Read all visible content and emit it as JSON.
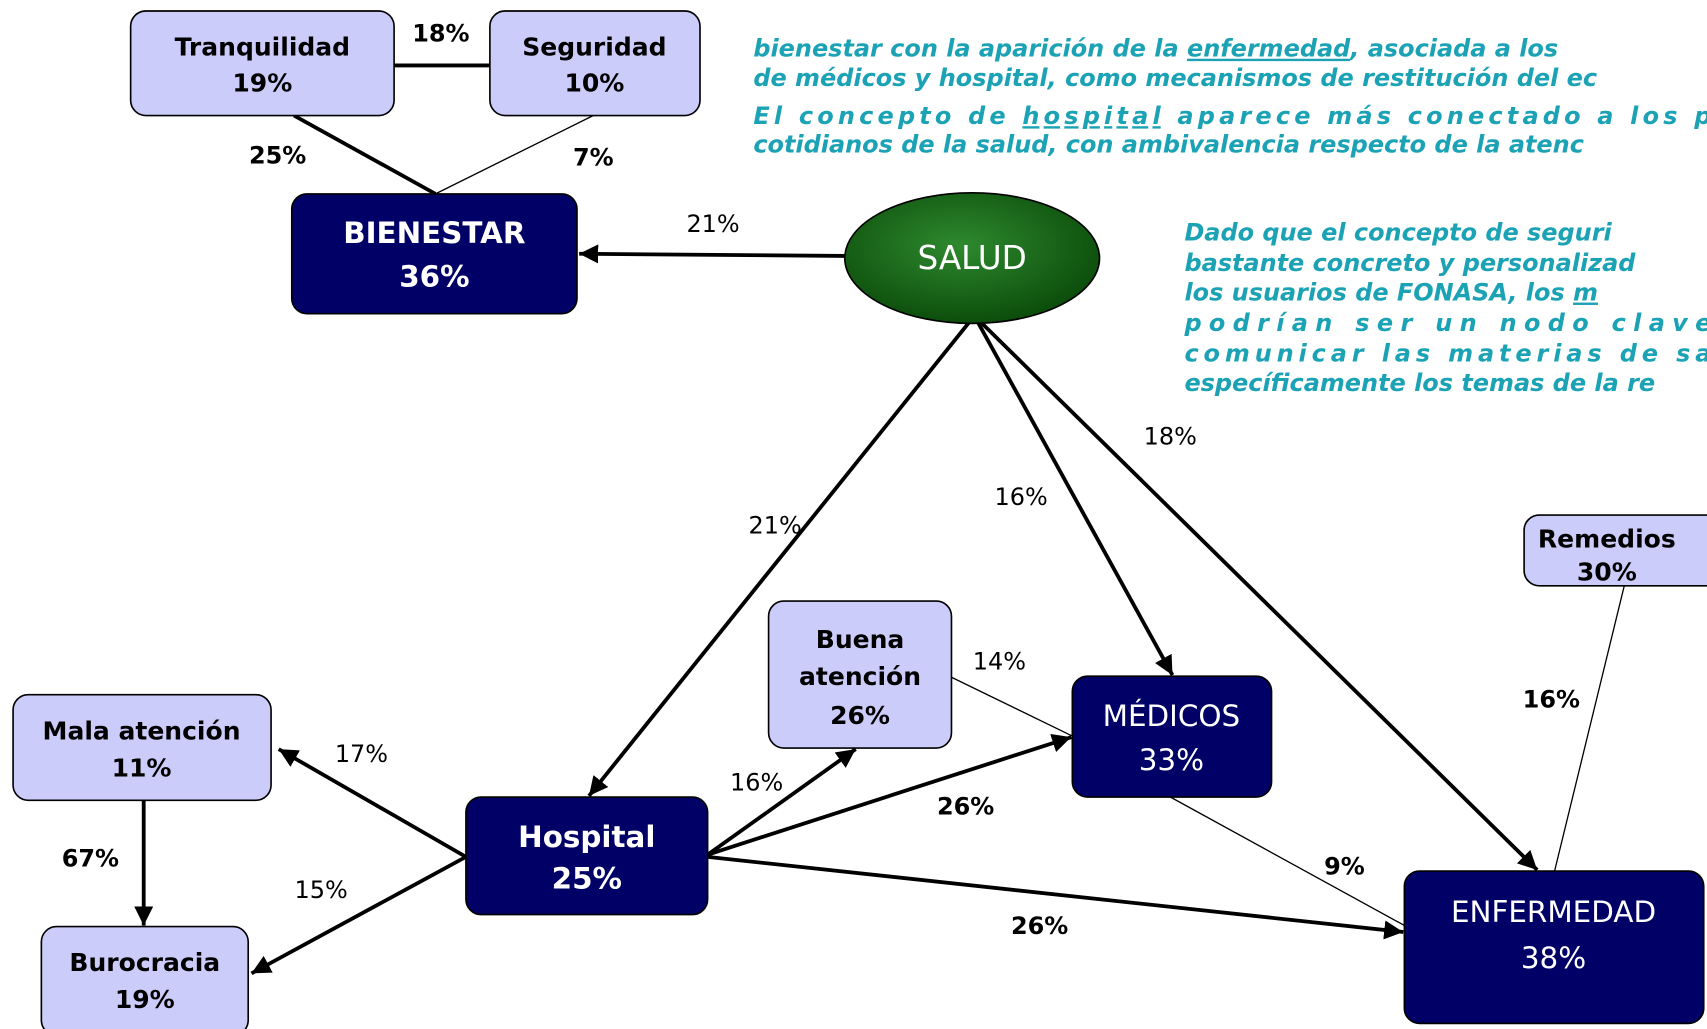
{
  "notes": [
    {
      "lines": [
        [
          {
            "text": "bienestar con la aparición de la "
          },
          {
            "text": "enfermedad",
            "underline": true
          },
          {
            "text": ", asociada a los"
          }
        ],
        [
          {
            "text": "de médicos y hospital, como mecanismos de restitución del ec"
          }
        ]
      ]
    },
    {
      "lines": [
        [
          {
            "text": "El concepto de "
          },
          {
            "text": "hospital",
            "underline": true
          },
          {
            "text": " aparece más conectado a los p"
          }
        ],
        [
          {
            "text": "cotidianos de la salud, con ambivalencia respecto de la atenc"
          }
        ]
      ]
    },
    {
      "lines": [
        [
          {
            "text": "Dado que el concepto de seguri"
          }
        ],
        [
          {
            "text": "bastante concreto y personalizad"
          }
        ],
        [
          {
            "text": "los usuarios de FONASA, los "
          },
          {
            "text": "m",
            "underline": true
          }
        ],
        [
          {
            "text": "podrían ser un nodo clave"
          }
        ],
        [
          {
            "text": "comunicar las materias de sa"
          }
        ],
        [
          {
            "text": "específicamente los temas de la re"
          }
        ]
      ]
    }
  ],
  "nodes": [
    {
      "label": [
        "Tranquilidad"
      ],
      "value": "19%"
    },
    {
      "label": [
        "Seguridad"
      ],
      "value": "10%"
    },
    {
      "label": [
        "BIENESTAR"
      ],
      "value": "36%"
    },
    {
      "label": [
        "SALUD"
      ]
    },
    {
      "label": [
        "Remedios"
      ],
      "value": "30%"
    },
    {
      "label": [
        "Buena",
        "atención"
      ],
      "value": "26%"
    },
    {
      "label": [
        "MÉDICOS"
      ],
      "value": "33%"
    },
    {
      "label": [
        "Mala atención"
      ],
      "value": "11%"
    },
    {
      "label": [
        "Hospital"
      ],
      "value": "25%"
    },
    {
      "label": [
        "Burocracia"
      ],
      "value": "19%"
    },
    {
      "label": [
        "ENFERMEDAD"
      ],
      "value": "38%"
    }
  ],
  "edges": [
    {
      "label": "18%"
    },
    {
      "label": "25%"
    },
    {
      "label": "7%"
    },
    {
      "label": "21%"
    },
    {
      "label": "21%"
    },
    {
      "label": "16%"
    },
    {
      "label": "18%"
    },
    {
      "label": "16%"
    },
    {
      "label": "14%"
    },
    {
      "label": "16%"
    },
    {
      "label": "26%"
    },
    {
      "label": "26%"
    },
    {
      "label": "9%"
    },
    {
      "label": "17%"
    },
    {
      "label": "15%"
    },
    {
      "label": "67%"
    }
  ]
}
